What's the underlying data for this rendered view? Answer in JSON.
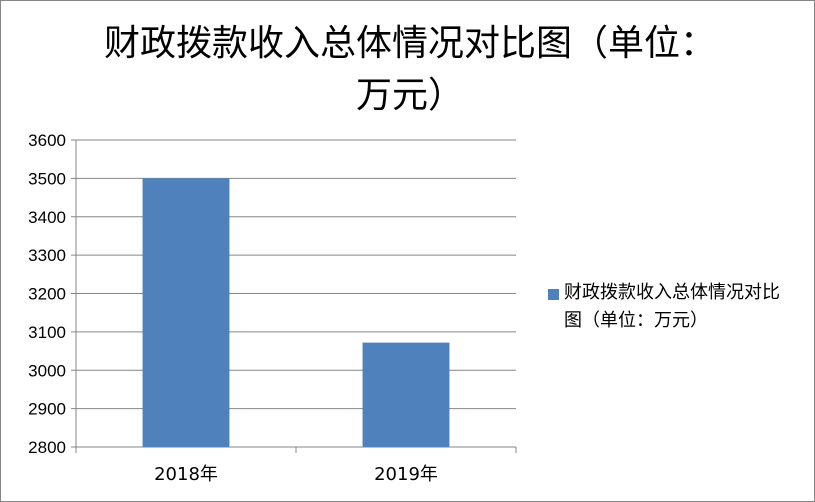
{
  "chart_data": {
    "type": "bar",
    "title": "财政拨款收入总体情况对比图（单位：万元）",
    "categories": [
      "2018年",
      "2019年"
    ],
    "series": [
      {
        "name": "财政拨款收入总体情况对比图（单位：万元）",
        "values": [
          3500,
          3072
        ],
        "color": "#4F81BD"
      }
    ],
    "ylim": [
      2800,
      3600
    ],
    "yticks": [
      2800,
      2900,
      3000,
      3100,
      3200,
      3300,
      3400,
      3500,
      3600
    ],
    "grid": true,
    "legend_position": "right"
  }
}
